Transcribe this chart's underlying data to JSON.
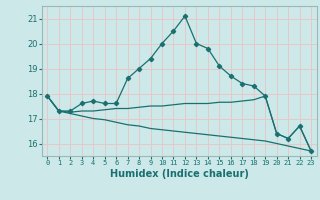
{
  "xlabel": "Humidex (Indice chaleur)",
  "bg_color": "#cce8e8",
  "plot_bg_color": "#cce8e8",
  "grid_color": "#e8c8c8",
  "line_color": "#1a7070",
  "border_color": "#99b8b8",
  "xlim": [
    -0.5,
    23.5
  ],
  "ylim": [
    15.5,
    21.5
  ],
  "yticks": [
    16,
    17,
    18,
    19,
    20,
    21
  ],
  "xticks": [
    0,
    1,
    2,
    3,
    4,
    5,
    6,
    7,
    8,
    9,
    10,
    11,
    12,
    13,
    14,
    15,
    16,
    17,
    18,
    19,
    20,
    21,
    22,
    23
  ],
  "line1_x": [
    0,
    1,
    2,
    3,
    4,
    5,
    6,
    7,
    8,
    9,
    10,
    11,
    12,
    13,
    14,
    15,
    16,
    17,
    18,
    19,
    20,
    21,
    22,
    23
  ],
  "line1_y": [
    17.9,
    17.3,
    17.3,
    17.6,
    17.7,
    17.6,
    17.6,
    18.6,
    19.0,
    19.4,
    20.0,
    20.5,
    21.1,
    20.0,
    19.8,
    19.1,
    18.7,
    18.4,
    18.3,
    17.9,
    16.4,
    16.2,
    16.7,
    15.7
  ],
  "line2_x": [
    0,
    1,
    2,
    3,
    4,
    5,
    6,
    7,
    8,
    9,
    10,
    11,
    12,
    13,
    14,
    15,
    16,
    17,
    18,
    19,
    20,
    21,
    22,
    23
  ],
  "line2_y": [
    17.9,
    17.3,
    17.25,
    17.3,
    17.3,
    17.35,
    17.4,
    17.4,
    17.45,
    17.5,
    17.5,
    17.55,
    17.6,
    17.6,
    17.6,
    17.65,
    17.65,
    17.7,
    17.75,
    17.9,
    16.4,
    16.2,
    16.7,
    15.7
  ],
  "line3_x": [
    0,
    1,
    2,
    3,
    4,
    5,
    6,
    7,
    8,
    9,
    10,
    11,
    12,
    13,
    14,
    15,
    16,
    17,
    18,
    19,
    20,
    21,
    22,
    23
  ],
  "line3_y": [
    17.9,
    17.3,
    17.2,
    17.1,
    17.0,
    16.95,
    16.85,
    16.75,
    16.7,
    16.6,
    16.55,
    16.5,
    16.45,
    16.4,
    16.35,
    16.3,
    16.25,
    16.2,
    16.15,
    16.1,
    16.0,
    15.9,
    15.8,
    15.7
  ]
}
